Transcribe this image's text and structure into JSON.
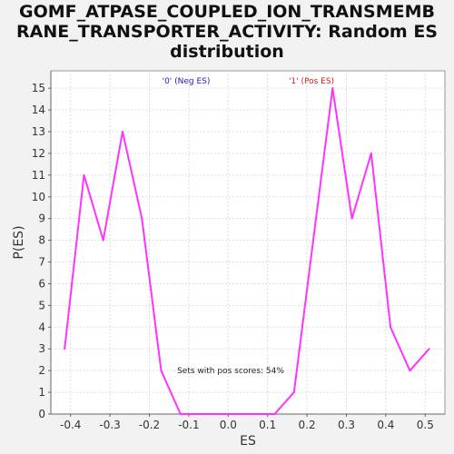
{
  "chart_data": {
    "type": "line",
    "title_lines": [
      "GOMF_ATPASE_COUPLED_ION_TRANSMEMB",
      "RANE_TRANSPORTER_ACTIVITY: Random ES",
      "distribution"
    ],
    "xlabel": "ES",
    "ylabel": "P(ES)",
    "xlim": [
      -0.45,
      0.55
    ],
    "ylim": [
      0,
      15.8
    ],
    "x_ticks": [
      -0.4,
      -0.3,
      -0.2,
      -0.1,
      0.0,
      0.1,
      0.2,
      0.3,
      0.4,
      0.5
    ],
    "x_tick_labels": [
      "-0.4",
      "-0.3",
      "-0.2",
      "-0.1",
      "0.0",
      "0.1",
      "0.2",
      "0.3",
      "0.4",
      "0.5"
    ],
    "y_ticks": [
      0,
      1,
      2,
      3,
      4,
      5,
      6,
      7,
      8,
      9,
      10,
      11,
      12,
      13,
      14,
      15
    ],
    "y_tick_labels": [
      "0",
      "1",
      "2",
      "3",
      "4",
      "5",
      "6",
      "7",
      "8",
      "9",
      "10",
      "11",
      "12",
      "13",
      "14",
      "15"
    ],
    "grid": true,
    "legend": [
      "'0' (Neg ES)",
      "'1' (Pos ES)"
    ],
    "annotation": "Sets with pos scores: 54%",
    "series": [
      {
        "color": "#ff33ff",
        "x": [
          -0.415,
          -0.366,
          -0.317,
          -0.268,
          -0.219,
          -0.17,
          -0.121,
          -0.072,
          -0.023,
          0.026,
          0.075,
          0.118,
          0.167,
          0.216,
          0.265,
          0.314,
          0.363,
          0.412,
          0.461,
          0.51
        ],
        "y": [
          3,
          11,
          8,
          13,
          9,
          2,
          0,
          0,
          0,
          0,
          0,
          0,
          1,
          8,
          15,
          9,
          12,
          4,
          2,
          3
        ]
      }
    ]
  }
}
